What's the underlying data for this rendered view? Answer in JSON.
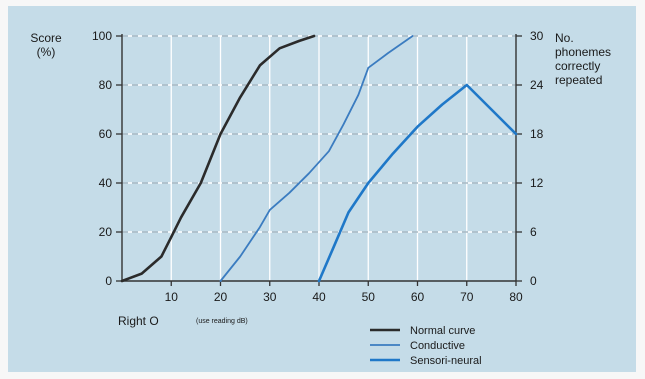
{
  "chart_data": {
    "type": "line",
    "left_axis": {
      "title_lines": [
        "Score",
        "(%)"
      ],
      "ylim": [
        0,
        100
      ],
      "ticks": [
        0,
        20,
        40,
        60,
        80,
        100
      ],
      "tick_labels": [
        "0",
        "20",
        "40",
        "60",
        "80",
        "100"
      ]
    },
    "right_axis": {
      "title_lines": [
        "No.",
        "phonemes",
        "correctly",
        "repeated"
      ],
      "ylim": [
        0,
        30
      ],
      "ticks": [
        0,
        6,
        12,
        18,
        24,
        30
      ],
      "tick_labels": [
        "0",
        "6",
        "12",
        "18",
        "24",
        "30"
      ]
    },
    "x_axis": {
      "xlim": [
        0,
        80
      ],
      "ticks": [
        10,
        20,
        30,
        40,
        50,
        60,
        70,
        80
      ],
      "tick_labels": [
        "10",
        "20",
        "30",
        "40",
        "50",
        "60",
        "70",
        "80"
      ],
      "label": "Right O",
      "sublabel": "(use reading dB)"
    },
    "grid": true,
    "legend_position": "bottom-right",
    "series": [
      {
        "name": "Normal curve",
        "color": "#2b2b2b",
        "x": [
          0,
          4,
          8,
          10,
          12,
          16,
          20,
          24,
          28,
          32,
          36,
          39
        ],
        "y": [
          0,
          3,
          10,
          18,
          26,
          40,
          60,
          75,
          88,
          95,
          98,
          100
        ]
      },
      {
        "name": "Conductive",
        "color": "#3b7cc0",
        "x": [
          20,
          24,
          28,
          30,
          34,
          38,
          42,
          45,
          48,
          50,
          54,
          59
        ],
        "y": [
          0,
          10,
          22,
          29,
          36,
          44,
          53,
          64,
          76,
          87,
          93,
          100
        ]
      },
      {
        "name": "Sensori-neural",
        "color": "#1f78c8",
        "x": [
          40,
          43,
          46,
          50,
          55,
          60,
          65,
          70,
          75,
          80
        ],
        "y": [
          0,
          14,
          28,
          40,
          52,
          63,
          72,
          80,
          70,
          60
        ]
      }
    ]
  }
}
